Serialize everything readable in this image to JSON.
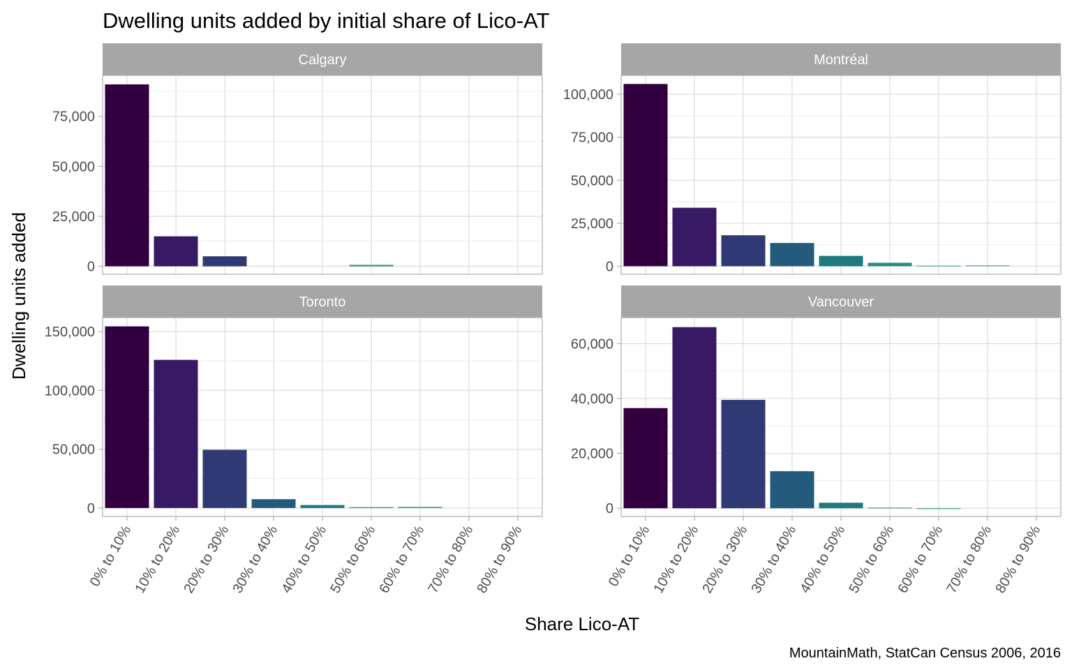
{
  "chart_data": {
    "type": "bar",
    "title": "Dwelling units added by initial share of Lico-AT",
    "xlabel": "Share Lico-AT",
    "ylabel": "Dwelling units added",
    "caption": "MountainMath, StatCan Census 2006, 2016",
    "categories": [
      "0% to 10%",
      "10% to 20%",
      "20% to 30%",
      "30% to 40%",
      "40% to 50%",
      "50% to 60%",
      "60% to 70%",
      "70% to 80%",
      "80% to 90%"
    ],
    "colors": [
      "#32003f",
      "#371a63",
      "#2f3a74",
      "#245b7d",
      "#1e7a7e",
      "#22907a",
      "#34a874",
      "#52bb64",
      "#7ccc50"
    ],
    "grid": true,
    "legend": "none",
    "panels": [
      {
        "name": "Calgary",
        "values": [
          91000,
          15000,
          5000,
          0,
          0,
          700,
          0,
          0,
          0
        ],
        "ylim": [
          -4000,
          95500
        ],
        "yticks": [
          0,
          25000,
          50000,
          75000
        ],
        "ytick_labels": [
          "0",
          "25,000",
          "50,000",
          "75,000"
        ]
      },
      {
        "name": "Montréal",
        "values": [
          106000,
          34000,
          18000,
          13500,
          6000,
          2000,
          300,
          500,
          0
        ],
        "ylim": [
          -4700,
          111000
        ],
        "yticks": [
          0,
          25000,
          50000,
          75000,
          100000
        ],
        "ytick_labels": [
          "0",
          "25,000",
          "50,000",
          "75,000",
          "100,000"
        ]
      },
      {
        "name": "Toronto",
        "values": [
          154500,
          126000,
          49500,
          7500,
          2500,
          700,
          1000,
          0,
          0
        ],
        "ylim": [
          -7200,
          162000
        ],
        "yticks": [
          0,
          50000,
          100000,
          150000
        ],
        "ytick_labels": [
          "0",
          "50,000",
          "100,000",
          "150,000"
        ]
      },
      {
        "name": "Vancouver",
        "values": [
          36500,
          66000,
          39500,
          13500,
          2000,
          200,
          -300,
          0,
          0
        ],
        "ylim": [
          -3000,
          69500
        ],
        "yticks": [
          0,
          20000,
          40000,
          60000
        ],
        "ytick_labels": [
          "0",
          "20,000",
          "40,000",
          "60,000"
        ]
      }
    ]
  }
}
